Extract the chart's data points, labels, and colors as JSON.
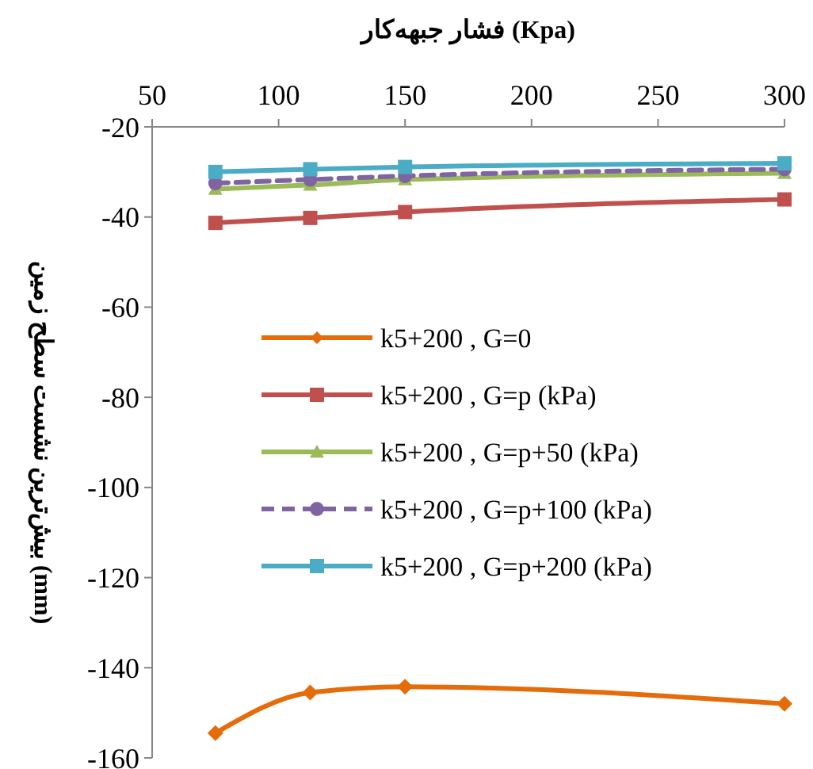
{
  "chart_data": {
    "type": "line",
    "xlabel": "فشار جبهه‌کار (Kpa)",
    "ylabel": "بیش‌ترین نشست سطح زمین (mm)",
    "x": [
      75,
      112.5,
      150,
      300
    ],
    "xlim": [
      50,
      300
    ],
    "xticks": [
      50,
      100,
      150,
      200,
      250,
      300
    ],
    "ylim": [
      -160,
      -20
    ],
    "yticks": [
      -160,
      -140,
      -120,
      -100,
      -80,
      -60,
      -40,
      -20
    ],
    "grid": false,
    "legend": "left",
    "series": [
      {
        "name": "k5+200 , G=0",
        "color": "#e46c0a",
        "marker": "diamond",
        "values": [
          -154.5,
          -145.5,
          -144.2,
          -148
        ]
      },
      {
        "name": "k5+200 , G=p (kPa)",
        "color": "#c0504d",
        "marker": "square",
        "values": [
          -41.3,
          -40.2,
          -38.9,
          -36.1
        ]
      },
      {
        "name": "k5+200 , G=p+50 (kPa)",
        "color": "#9bbb59",
        "marker": "triangle",
        "values": [
          -33.8,
          -32.9,
          -31.7,
          -30.3
        ]
      },
      {
        "name": "k5+200 , G=p+100 (kPa)",
        "color": "#8064a2",
        "marker": "circle",
        "line_style": "dashed",
        "values": [
          -32.5,
          -31.7,
          -30.9,
          -29.4
        ]
      },
      {
        "name": "k5+200 , G=p+200 (kPa)",
        "color": "#4bacc6",
        "marker": "square",
        "values": [
          -30,
          -29.4,
          -28.9,
          -28.1
        ]
      }
    ]
  }
}
